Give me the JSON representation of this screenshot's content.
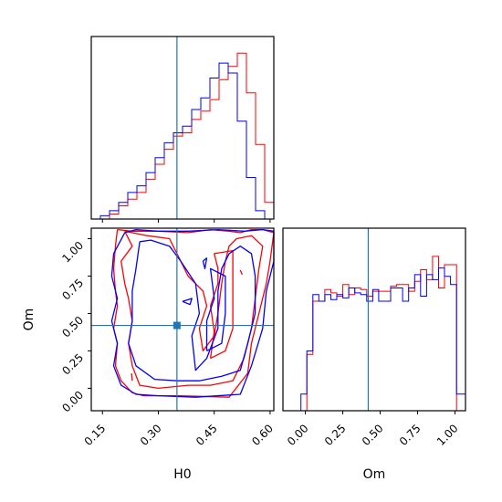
{
  "chart_data": {
    "type": "corner",
    "parameters": [
      "H0",
      "Om"
    ],
    "truth": {
      "H0": 0.35,
      "Om": 0.42
    },
    "colors": {
      "series_a": "#ff0000",
      "series_b": "#0000ff",
      "truth": "#1f77b4"
    },
    "axes": {
      "H0": {
        "range": [
          0.12,
          0.61
        ],
        "ticks": [
          0.15,
          0.3,
          0.45,
          0.6
        ],
        "tick_labels": [
          "0.15",
          "0.30",
          "0.45",
          "0.60"
        ]
      },
      "Om": {
        "range": [
          -0.15,
          1.07
        ],
        "ticks": [
          0.0,
          0.25,
          0.5,
          0.75,
          1.0
        ],
        "tick_labels": [
          "0.00",
          "0.25",
          "0.50",
          "0.75",
          "1.00"
        ]
      }
    },
    "hist_H0": {
      "edges": [
        0.12,
        0.1445,
        0.169,
        0.1935,
        0.218,
        0.2425,
        0.267,
        0.2915,
        0.316,
        0.3405,
        0.365,
        0.3895,
        0.414,
        0.4385,
        0.463,
        0.4875,
        0.512,
        0.5365,
        0.561,
        0.5855,
        0.61
      ],
      "series_a": [
        0,
        0,
        0.03,
        0.08,
        0.12,
        0.16,
        0.24,
        0.33,
        0.42,
        0.5,
        0.52,
        0.6,
        0.65,
        0.72,
        0.84,
        0.92,
        1.0,
        0.76,
        0.45,
        0.1
      ],
      "series_b": [
        0,
        0.02,
        0.05,
        0.1,
        0.16,
        0.2,
        0.28,
        0.37,
        0.46,
        0.52,
        0.56,
        0.66,
        0.73,
        0.85,
        0.94,
        0.88,
        0.59,
        0.25,
        0.05,
        0
      ]
    },
    "hist_Om": {
      "edges": [
        -0.15,
        -0.11,
        -0.07,
        -0.03,
        0.01,
        0.05,
        0.09,
        0.13,
        0.17,
        0.21,
        0.25,
        0.29,
        0.33,
        0.37,
        0.41,
        0.45,
        0.49,
        0.53,
        0.57,
        0.61,
        0.65,
        0.69,
        0.73,
        0.77,
        0.81,
        0.85,
        0.89,
        0.93,
        0.97,
        1.01,
        1.05,
        1.07
      ],
      "series_a": [
        0,
        0,
        0,
        0,
        0.34,
        0.66,
        0.66,
        0.73,
        0.71,
        0.69,
        0.76,
        0.7,
        0.74,
        0.73,
        0.69,
        0.72,
        0.72,
        0.72,
        0.75,
        0.76,
        0.76,
        0.72,
        0.78,
        0.85,
        0.79,
        0.93,
        0.74,
        0.88,
        0.88,
        0,
        0,
        0
      ],
      "series_b": [
        0,
        0,
        0,
        0.1,
        0.36,
        0.7,
        0.66,
        0.7,
        0.67,
        0.7,
        0.68,
        0.74,
        0.71,
        0.7,
        0.66,
        0.73,
        0.66,
        0.66,
        0.74,
        0.74,
        0.66,
        0.74,
        0.82,
        0.69,
        0.82,
        0.79,
        0.86,
        0.81,
        0.76,
        0.1,
        0.1,
        0.1
      ]
    },
    "contours": {
      "series_a": [
        [
          [
            0.19,
            1.06
          ],
          [
            0.23,
            1.05
          ],
          [
            0.3,
            1.05
          ],
          [
            0.38,
            1.04
          ],
          [
            0.44,
            1.06
          ],
          [
            0.49,
            1.05
          ],
          [
            0.52,
            1.04
          ],
          [
            0.55,
            1.06
          ],
          [
            0.58,
            1.06
          ],
          [
            0.61,
            1.04
          ],
          [
            0.6,
            0.85
          ],
          [
            0.59,
            0.7
          ],
          [
            0.57,
            0.5
          ],
          [
            0.55,
            0.3
          ],
          [
            0.54,
            0.1
          ],
          [
            0.49,
            -0.06
          ],
          [
            0.36,
            -0.05
          ],
          [
            0.26,
            -0.05
          ],
          [
            0.23,
            -0.03
          ],
          [
            0.2,
            0.05
          ],
          [
            0.185,
            0.15
          ],
          [
            0.19,
            0.3
          ],
          [
            0.18,
            0.4
          ],
          [
            0.19,
            0.55
          ],
          [
            0.185,
            0.65
          ],
          [
            0.18,
            0.8
          ],
          [
            0.185,
            0.95
          ],
          [
            0.19,
            1.06
          ]
        ],
        [
          [
            0.21,
            1.05
          ],
          [
            0.23,
            0.95
          ],
          [
            0.2,
            0.85
          ],
          [
            0.21,
            0.7
          ],
          [
            0.22,
            0.6
          ],
          [
            0.23,
            0.45
          ],
          [
            0.22,
            0.3
          ],
          [
            0.23,
            0.15
          ],
          [
            0.25,
            0.02
          ],
          [
            0.3,
            0.0
          ],
          [
            0.38,
            0.02
          ],
          [
            0.44,
            0.02
          ],
          [
            0.5,
            0.05
          ],
          [
            0.53,
            0.2
          ],
          [
            0.55,
            0.4
          ],
          [
            0.56,
            0.6
          ],
          [
            0.57,
            0.8
          ],
          [
            0.58,
            0.95
          ],
          [
            0.55,
            1.02
          ],
          [
            0.51,
            1.0
          ],
          [
            0.49,
            0.95
          ],
          [
            0.48,
            0.85
          ],
          [
            0.47,
            0.7
          ],
          [
            0.46,
            0.5
          ],
          [
            0.45,
            0.35
          ],
          [
            0.42,
            0.25
          ],
          [
            0.41,
            0.4
          ],
          [
            0.43,
            0.55
          ],
          [
            0.42,
            0.65
          ],
          [
            0.38,
            0.75
          ],
          [
            0.35,
            0.9
          ],
          [
            0.33,
            1.0
          ],
          [
            0.27,
            1.02
          ],
          [
            0.21,
            1.05
          ]
        ],
        [
          [
            0.44,
            0.2
          ],
          [
            0.45,
            0.38
          ],
          [
            0.44,
            0.55
          ],
          [
            0.46,
            0.7
          ],
          [
            0.46,
            0.8
          ],
          [
            0.45,
            0.9
          ],
          [
            0.5,
            0.92
          ],
          [
            0.5,
            0.8
          ],
          [
            0.5,
            0.6
          ],
          [
            0.5,
            0.4
          ],
          [
            0.48,
            0.25
          ],
          [
            0.44,
            0.2
          ]
        ],
        [
          [
            0.228,
            0.1
          ],
          [
            0.23,
            0.05
          ]
        ],
        [
          [
            0.52,
            0.79
          ],
          [
            0.525,
            0.76
          ]
        ]
      ],
      "series_b": [
        [
          [
            0.21,
            1.04
          ],
          [
            0.24,
            1.06
          ],
          [
            0.3,
            1.05
          ],
          [
            0.38,
            1.05
          ],
          [
            0.46,
            1.06
          ],
          [
            0.53,
            1.05
          ],
          [
            0.58,
            1.06
          ],
          [
            0.61,
            1.05
          ],
          [
            0.61,
            0.85
          ],
          [
            0.59,
            0.65
          ],
          [
            0.58,
            0.4
          ],
          [
            0.55,
            0.15
          ],
          [
            0.52,
            -0.04
          ],
          [
            0.4,
            -0.06
          ],
          [
            0.3,
            -0.05
          ],
          [
            0.24,
            -0.04
          ],
          [
            0.2,
            0.02
          ],
          [
            0.18,
            0.15
          ],
          [
            0.19,
            0.3
          ],
          [
            0.175,
            0.45
          ],
          [
            0.19,
            0.6
          ],
          [
            0.175,
            0.75
          ],
          [
            0.18,
            0.9
          ],
          [
            0.21,
            1.04
          ]
        ],
        [
          [
            0.25,
            0.98
          ],
          [
            0.24,
            0.8
          ],
          [
            0.23,
            0.65
          ],
          [
            0.23,
            0.45
          ],
          [
            0.22,
            0.3
          ],
          [
            0.24,
            0.15
          ],
          [
            0.29,
            0.06
          ],
          [
            0.35,
            0.05
          ],
          [
            0.41,
            0.05
          ],
          [
            0.47,
            0.08
          ],
          [
            0.52,
            0.12
          ],
          [
            0.54,
            0.3
          ],
          [
            0.56,
            0.5
          ],
          [
            0.56,
            0.75
          ],
          [
            0.55,
            0.9
          ],
          [
            0.52,
            0.95
          ],
          [
            0.49,
            0.9
          ],
          [
            0.47,
            0.8
          ],
          [
            0.46,
            0.65
          ],
          [
            0.46,
            0.4
          ],
          [
            0.43,
            0.2
          ],
          [
            0.4,
            0.12
          ],
          [
            0.39,
            0.35
          ],
          [
            0.41,
            0.5
          ],
          [
            0.4,
            0.7
          ],
          [
            0.36,
            0.85
          ],
          [
            0.33,
            0.95
          ],
          [
            0.28,
            0.99
          ],
          [
            0.25,
            0.98
          ]
        ],
        [
          [
            0.43,
            0.25
          ],
          [
            0.43,
            0.45
          ],
          [
            0.45,
            0.6
          ],
          [
            0.44,
            0.8
          ],
          [
            0.48,
            0.75
          ],
          [
            0.48,
            0.5
          ],
          [
            0.47,
            0.3
          ],
          [
            0.43,
            0.25
          ]
        ],
        [
          [
            0.42,
            0.85
          ],
          [
            0.425,
            0.8
          ],
          [
            0.43,
            0.87
          ],
          [
            0.42,
            0.85
          ]
        ],
        [
          [
            0.365,
            0.58
          ],
          [
            0.39,
            0.6
          ],
          [
            0.385,
            0.56
          ],
          [
            0.365,
            0.58
          ]
        ]
      ]
    }
  },
  "labels": {
    "xlabel_h0": "H0",
    "ylabel_om": "Om",
    "xlabel_om": "Om"
  }
}
